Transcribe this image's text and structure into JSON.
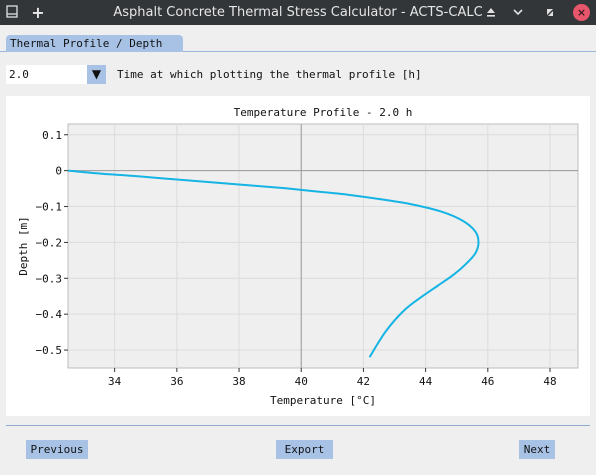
{
  "window": {
    "title": "Asphalt Concrete Thermal Stress Calculator - ACTS-CALC",
    "close_glyph": "×"
  },
  "tabs": [
    {
      "label": "Thermal Profile / Depth"
    }
  ],
  "time_selector": {
    "value": "2.0",
    "label": "Time at which plotting the thermal profile [h]"
  },
  "chart_data": {
    "type": "line",
    "title": "Temperature Profile - 2.0 h",
    "xlabel": "Temperature [°C]",
    "ylabel": "Depth [m]",
    "xlim": [
      32.5,
      48.9
    ],
    "ylim": [
      -0.55,
      0.13
    ],
    "x_ticks": [
      34,
      36,
      38,
      40,
      42,
      44,
      46,
      48
    ],
    "y_ticks": [
      0.1,
      0,
      -0.1,
      -0.2,
      -0.3,
      -0.4,
      -0.5
    ],
    "y_tick_labels": [
      "0.1",
      "0",
      "−0.1",
      "−0.2",
      "−0.3",
      "−0.4",
      "−0.5"
    ],
    "grid": true,
    "zero_lines": {
      "x": 40,
      "y": 0
    },
    "series": [
      {
        "color": "#15b4e4",
        "x": [
          32.5,
          33.5,
          34.5,
          35.5,
          36.5,
          37.5,
          38.5,
          39.5,
          40.5,
          41.5,
          42.5,
          43.5,
          44.5,
          45.2,
          45.6,
          45.7,
          45.6,
          45.3,
          44.9,
          44.4,
          43.9,
          43.3,
          42.7,
          42.2
        ],
        "y": [
          0.0,
          -0.008,
          -0.014,
          -0.021,
          -0.028,
          -0.035,
          -0.042,
          -0.049,
          -0.058,
          -0.067,
          -0.079,
          -0.093,
          -0.114,
          -0.14,
          -0.17,
          -0.2,
          -0.23,
          -0.26,
          -0.29,
          -0.32,
          -0.35,
          -0.39,
          -0.45,
          -0.52
        ]
      }
    ]
  },
  "buttons": {
    "previous": "Previous",
    "export": "Export",
    "next": "Next"
  },
  "colors": {
    "accent": "#a8c2e6",
    "titlebar": "#323639",
    "plot_bg": "#efefef",
    "line": "#15b4e4"
  }
}
